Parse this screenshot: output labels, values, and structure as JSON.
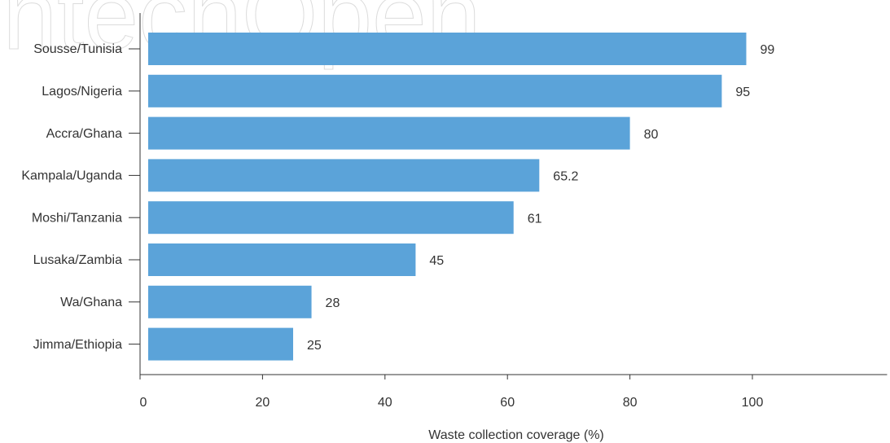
{
  "chart_data": {
    "type": "bar",
    "orientation": "horizontal",
    "categories": [
      "Sousse/Tunisia",
      "Lagos/Nigeria",
      "Accra/Ghana",
      "Kampala/Uganda",
      "Moshi/Tanzania",
      "Lusaka/Zambia",
      "Wa/Ghana",
      "Jimma/Ethiopia"
    ],
    "values": [
      99,
      95,
      80,
      65.2,
      61,
      45,
      28,
      25
    ],
    "value_labels": [
      "99",
      "95",
      "80",
      "65.2",
      "61",
      "45",
      "28",
      "25"
    ],
    "xlabel": "Waste collection coverage (%)",
    "ylabel": "",
    "title": "",
    "xlim": [
      0,
      122
    ],
    "xticks": [
      0,
      20,
      40,
      60,
      80,
      100
    ],
    "xtick_labels": [
      "0",
      "20",
      "40",
      "60",
      "80",
      "100"
    ],
    "grid": false,
    "legend": "none",
    "bar_color": "#5ba3d9"
  },
  "watermark": {
    "text": "IntechOpen"
  }
}
